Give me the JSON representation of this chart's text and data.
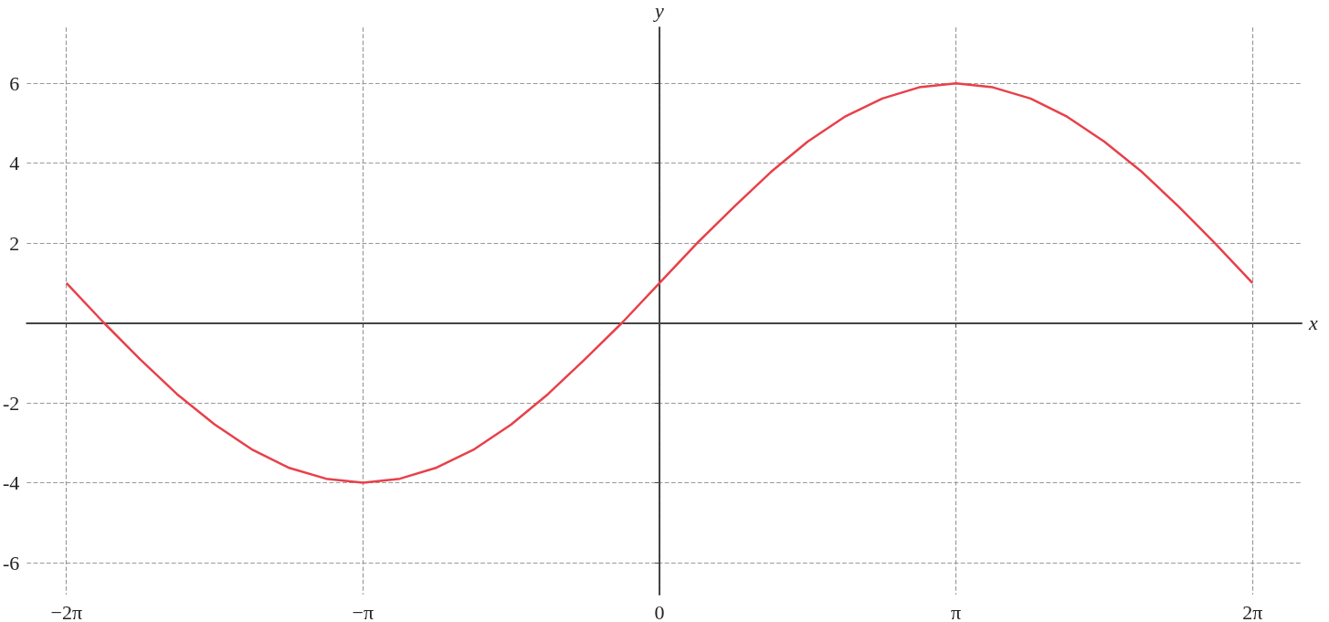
{
  "chart_data": {
    "type": "line",
    "xlabel": "x",
    "ylabel": "y",
    "x": [
      -6.28,
      -5.89,
      -5.5,
      -5.11,
      -4.71,
      -4.32,
      -3.93,
      -3.53,
      -3.14,
      -2.75,
      -2.36,
      -1.96,
      -1.57,
      -1.18,
      -0.79,
      -0.39,
      0,
      0.39,
      0.79,
      1.18,
      1.57,
      1.96,
      2.36,
      2.75,
      3.14,
      3.53,
      3.93,
      4.32,
      4.71,
      5.11,
      5.5,
      5.89,
      6.28
    ],
    "series": [
      {
        "color": "#e8404a",
        "values": [
          1,
          0.02,
          -0.91,
          -1.78,
          -2.54,
          -3.16,
          -3.62,
          -3.9,
          -4,
          -3.9,
          -3.62,
          -3.16,
          -2.54,
          -1.78,
          -0.91,
          0.02,
          1,
          1.98,
          2.91,
          3.78,
          4.54,
          5.16,
          5.62,
          5.9,
          6,
          5.9,
          5.62,
          5.16,
          4.54,
          3.78,
          2.91,
          1.98,
          1
        ]
      }
    ],
    "xlim": [
      -6.7,
      6.8
    ],
    "ylim": [
      -6.8,
      7.4
    ],
    "xticks": [
      {
        "value": -6.28,
        "label": "−2π"
      },
      {
        "value": -3.14,
        "label": "−π"
      },
      0,
      {
        "value": 3.14,
        "label": "π"
      },
      {
        "value": 6.28,
        "label": "2π"
      }
    ],
    "yticks": [
      -6,
      -4,
      -2,
      2,
      4,
      6
    ],
    "grid": true,
    "marker": "none",
    "line_style": "solid"
  }
}
